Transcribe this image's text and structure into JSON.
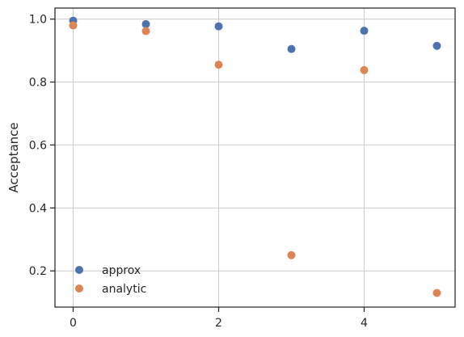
{
  "chart_data": {
    "type": "scatter",
    "title": "",
    "xlabel": "",
    "ylabel": "Acceptance",
    "xlim": [
      -0.25,
      5.25
    ],
    "ylim": [
      0.085,
      1.035
    ],
    "xticks": [
      0,
      2,
      4
    ],
    "yticks": [
      0.2,
      0.4,
      0.6,
      0.8,
      1.0
    ],
    "xtick_labels": [
      "0",
      "2",
      "4"
    ],
    "ytick_labels": [
      "0.2",
      "0.4",
      "0.6",
      "0.8",
      "1.0"
    ],
    "grid": true,
    "legend_position": "lower-left",
    "series": [
      {
        "name": "approx",
        "color": "#4c72b0",
        "x": [
          0,
          1,
          2,
          3,
          4,
          5
        ],
        "y": [
          0.995,
          0.984,
          0.977,
          0.905,
          0.963,
          0.915
        ]
      },
      {
        "name": "analytic",
        "color": "#dd8452",
        "x": [
          0,
          1,
          2,
          3,
          4,
          5
        ],
        "y": [
          0.98,
          0.962,
          0.855,
          0.25,
          0.838,
          0.13
        ]
      }
    ]
  }
}
